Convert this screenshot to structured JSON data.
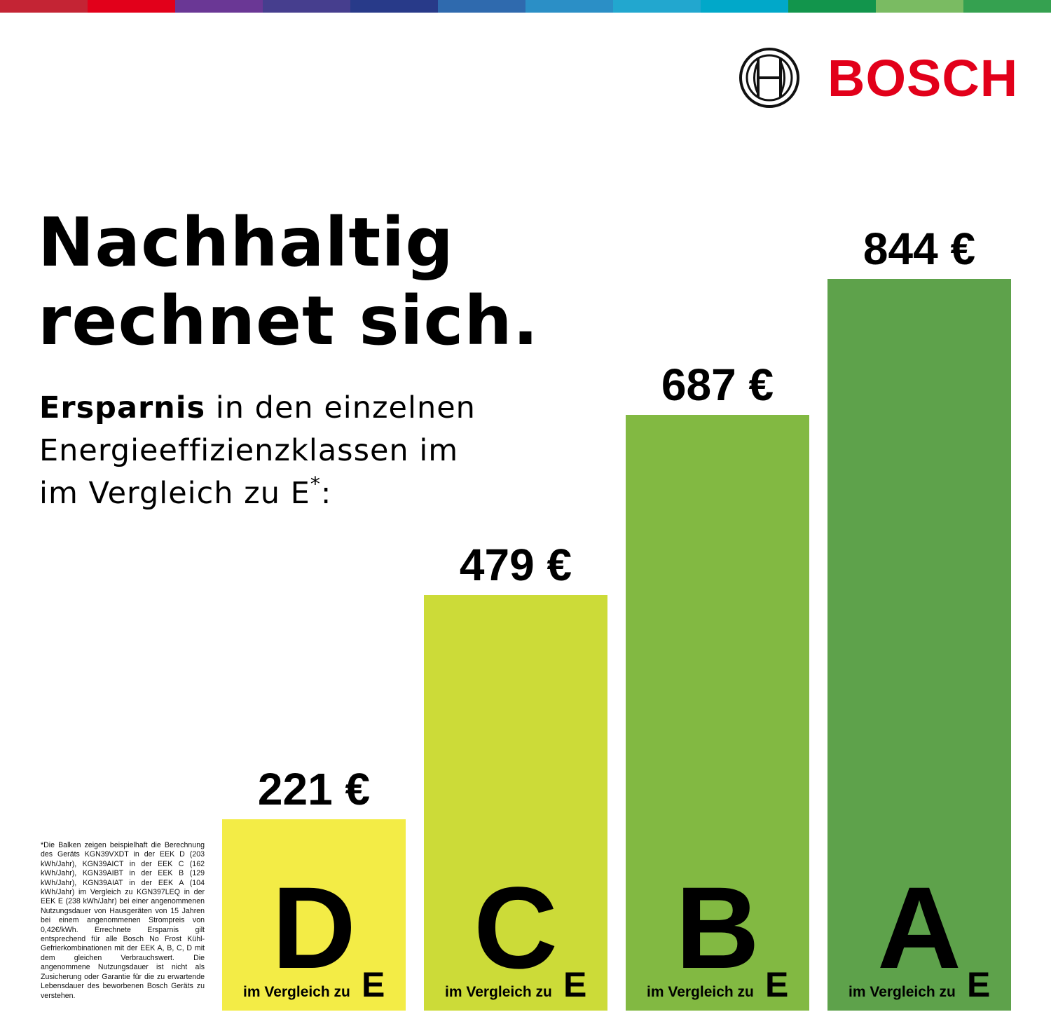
{
  "colors": {
    "topbar": [
      "#c42434",
      "#e2001a",
      "#6a3795",
      "#463e8e",
      "#283a89",
      "#2f6aae",
      "#2b8fc6",
      "#22a7cf",
      "#01a8c9",
      "#12954c",
      "#7abb62",
      "#35a150"
    ],
    "brand_red": "#e2001a"
  },
  "logo": {
    "wordmark": "BOSCH",
    "icon": "bosch-armature-icon"
  },
  "headline": {
    "line1": "Nachhaltig",
    "line2": "rechnet sich."
  },
  "subtitle": {
    "bold": "Ersparnis",
    "rest1": " in den einzelnen",
    "line2": "Energieeffizienzklassen im",
    "line3": "im Vergleich zu E",
    "sup": "*",
    "tail": ":"
  },
  "footnote": "*Die Balken zeigen beispielhaft die Berechnung des Geräts KGN39VXDT in der EEK D (203 kWh/Jahr), KGN39AICT in der EEK C (162 kWh/Jahr), KGN39AIBT in der EEK B (129 kWh/Jahr), KGN39AIAT in der EEK A (104 kWh/Jahr) im Vergleich zu KGN397LEQ in der EEK E (238 kWh/Jahr) bei einer angenommenen Nutzungsdauer von Hausgeräten von 15 Jahren bei einem angenommenen Strompreis von 0,42€/kWh. Errechnete Ersparnis gilt entsprechend für alle Bosch No Frost Kühl-Gefrierkombinationen mit der EEK A, B, C, D mit dem gleichen Verbrauchswert. Die angenommene Nutzungsdauer ist nicht als Zusicherung oder Garantie für die zu erwartende Lebensdauer des beworbenen Bosch Geräts zu verstehen.",
  "chart_data": {
    "type": "bar",
    "categories": [
      "D",
      "C",
      "B",
      "A"
    ],
    "values": [
      221,
      479,
      687,
      844
    ],
    "value_labels": [
      "221 €",
      "479 €",
      "687 €",
      "844 €"
    ],
    "bar_colors": [
      "#f3ec46",
      "#ccdb38",
      "#82b942",
      "#5ea24b"
    ],
    "bar_caption": "im Vergleich zu",
    "bar_caption_suffix": "E",
    "ylim": [
      0,
      844
    ],
    "grid": false,
    "title": "",
    "xlabel": "",
    "ylabel": ""
  }
}
